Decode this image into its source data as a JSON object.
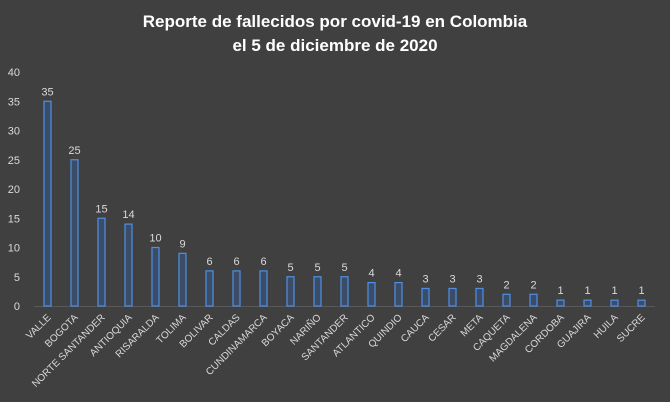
{
  "chart_data": {
    "type": "bar",
    "title_lines": [
      "Reporte de fallecidos por covid-19 en Colombia",
      "el 5 de diciembre de 2020"
    ],
    "categories": [
      "VALLE",
      "BOGOTA",
      "NORTE SANTANDER",
      "ANTIOQUIA",
      "RISARALDA",
      "TOLIMA",
      "BOLIVAR",
      "CALDAS",
      "CUNDINAMARCA",
      "BOYACA",
      "NARIÑO",
      "SANTANDER",
      "ATLANTICO",
      "QUINDIO",
      "CAUCA",
      "CESAR",
      "META",
      "CAQUETA",
      "MAGDALENA",
      "CORDOBA",
      "GUAJIRA",
      "HUILA",
      "SUCRE"
    ],
    "values": [
      35,
      25,
      15,
      14,
      10,
      9,
      6,
      6,
      6,
      5,
      5,
      5,
      4,
      4,
      3,
      3,
      3,
      2,
      2,
      1,
      1,
      1,
      1
    ],
    "ylim": [
      0,
      40
    ],
    "yticks": [
      0,
      5,
      10,
      15,
      20,
      25,
      30,
      35,
      40
    ],
    "grid": false,
    "legend": "none",
    "colors": {
      "background": "#404040",
      "bar_fill": "#3b4d66",
      "bar_stroke": "#4f8fe6",
      "text": "#d9d9d9",
      "title": "#ffffff"
    }
  }
}
